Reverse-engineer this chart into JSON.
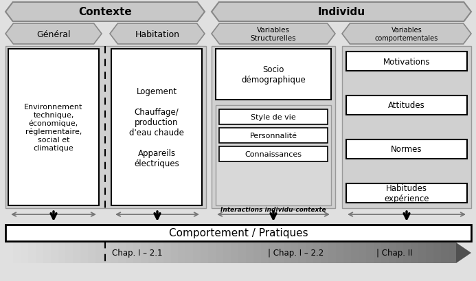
{
  "fig_width": 6.93,
  "fig_height": 4.1,
  "dpi": 100,
  "bg_color": "#e0e0e0",
  "contexte_label": "Contexte",
  "individu_label": "Individu",
  "general_label": "Général",
  "habitation_label": "Habitation",
  "var_struct_label": "Variables\nStructurelles",
  "var_comport_label": "Variables\ncomportementales",
  "env_text": "Environnement\ntechnique,\néconomique,\nréglementaire,\nsocial et\nclimatique",
  "log_text": "Logement\n\nChauffage/\nproduction\nd'eau chaude\n\nAppareils\nélectriques",
  "socio_text": "Socio\ndémographique",
  "style_text": "Style de vie",
  "perso_text": "Personnalité",
  "connais_text": "Connaissances",
  "motiv_text": "Motivations",
  "attit_text": "Attitudes",
  "normes_text": "Normes",
  "habit_text": "Habitudes\nexpérience",
  "interact_text": "Interactions individu-contexte",
  "comport_text": "Comportement / Pratiques",
  "chap1": "Chap. I – 2.1",
  "chap2": "| Chap. I – 2.2",
  "chap3": "| Chap. II"
}
